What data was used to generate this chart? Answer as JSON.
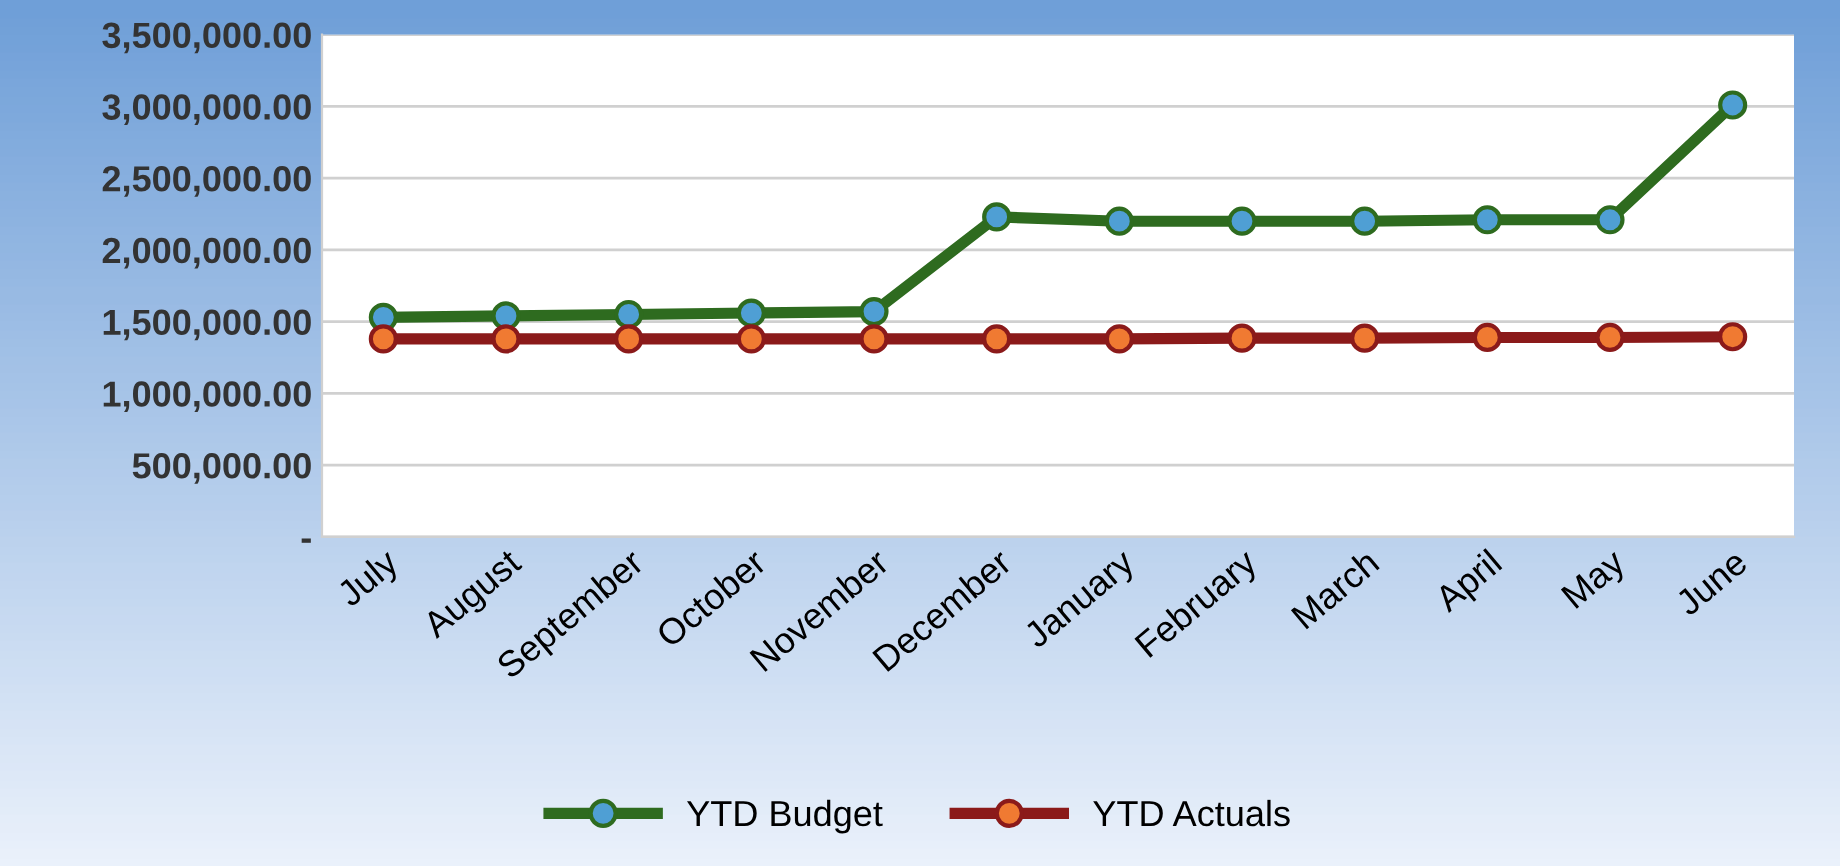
{
  "chart_data": {
    "type": "line",
    "categories": [
      "July",
      "August",
      "September",
      "October",
      "November",
      "December",
      "January",
      "February",
      "March",
      "April",
      "May",
      "June"
    ],
    "series": [
      {
        "name": "YTD Budget",
        "color": "#2e6b1f",
        "values": [
          1530000,
          1540000,
          1550000,
          1560000,
          1570000,
          2230000,
          2200000,
          2200000,
          2200000,
          2210000,
          2210000,
          3010000
        ]
      },
      {
        "name": "YTD Actuals",
        "color": "#8b1a1a",
        "values": [
          1380000,
          1380000,
          1380000,
          1380000,
          1380000,
          1380000,
          1380000,
          1385000,
          1385000,
          1390000,
          1390000,
          1395000
        ]
      }
    ],
    "ylim": [
      0,
      3500000
    ],
    "yticks": [
      {
        "value": 0,
        "label": "-"
      },
      {
        "value": 500000,
        "label": "500,000.00"
      },
      {
        "value": 1000000,
        "label": "1,000,000.00"
      },
      {
        "value": 1500000,
        "label": "1,500,000.00"
      },
      {
        "value": 2000000,
        "label": "2,000,000.00"
      },
      {
        "value": 2500000,
        "label": "2,500,000.00"
      },
      {
        "value": 3000000,
        "label": "3,000,000.00"
      },
      {
        "value": 3500000,
        "label": "3,500,000.00"
      }
    ],
    "grid": "y",
    "legend": "bottom",
    "marker": "circle",
    "line_style": "solid"
  }
}
